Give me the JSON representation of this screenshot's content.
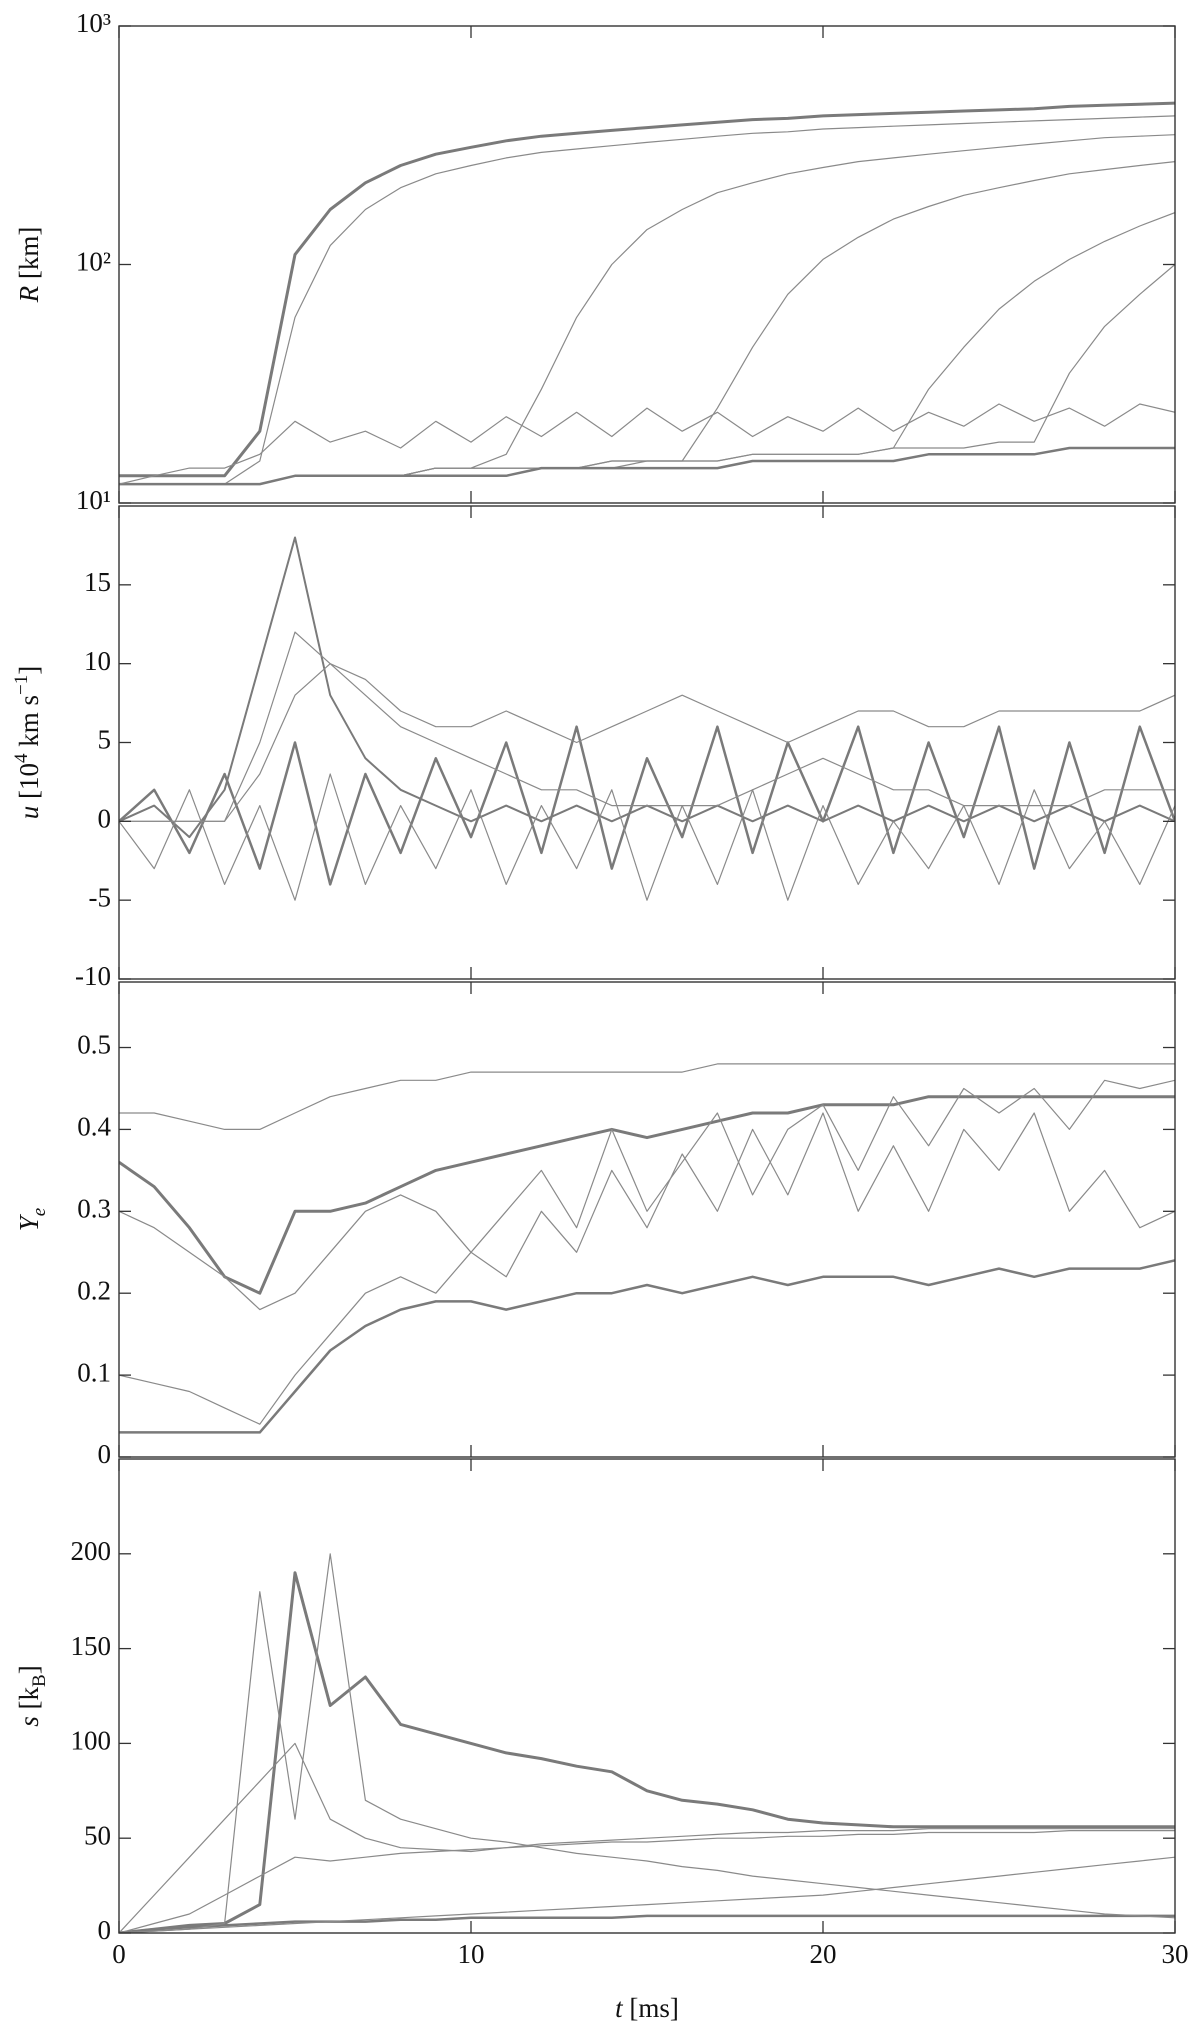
{
  "chart_data": [
    {
      "type": "line",
      "yscale": "log",
      "ylabel": [
        "R",
        "  [km]"
      ],
      "xlim": [
        0,
        30
      ],
      "ylim": [
        10,
        1000
      ],
      "yticks": [
        {
          "value": 10,
          "label": "10¹"
        },
        {
          "value": 100,
          "label": "10²"
        },
        {
          "value": 1000,
          "label": "10³"
        }
      ],
      "x": [
        0,
        1,
        2,
        3,
        4,
        5,
        6,
        7,
        8,
        9,
        10,
        11,
        12,
        13,
        14,
        15,
        16,
        17,
        18,
        19,
        20,
        21,
        22,
        23,
        24,
        25,
        26,
        27,
        28,
        29,
        30
      ],
      "series": [
        {
          "color": "#7a7a7a",
          "linewidth": 3,
          "values": [
            13,
            13,
            13,
            13,
            20,
            110,
            170,
            220,
            260,
            290,
            310,
            330,
            345,
            355,
            365,
            375,
            385,
            395,
            405,
            410,
            420,
            425,
            430,
            435,
            440,
            445,
            450,
            460,
            465,
            470,
            475
          ]
        },
        {
          "color": "#8a8a8a",
          "linewidth": 1.2,
          "values": [
            12,
            12,
            12,
            12,
            15,
            60,
            120,
            170,
            210,
            240,
            260,
            280,
            295,
            305,
            315,
            325,
            335,
            345,
            355,
            360,
            370,
            375,
            380,
            385,
            390,
            395,
            400,
            405,
            410,
            415,
            420
          ]
        },
        {
          "color": "#8a8a8a",
          "linewidth": 1.2,
          "values": [
            12,
            12,
            12,
            12,
            12,
            13,
            13,
            13,
            13,
            14,
            14,
            16,
            30,
            60,
            100,
            140,
            170,
            200,
            220,
            240,
            255,
            270,
            280,
            290,
            300,
            310,
            320,
            330,
            340,
            345,
            350
          ]
        },
        {
          "color": "#8a8a8a",
          "linewidth": 1.2,
          "values": [
            12,
            12,
            12,
            12,
            12,
            13,
            13,
            13,
            13,
            14,
            14,
            14,
            14,
            14,
            14,
            15,
            15,
            25,
            45,
            75,
            105,
            130,
            155,
            175,
            195,
            210,
            225,
            240,
            250,
            260,
            270
          ]
        },
        {
          "color": "#8a8a8a",
          "linewidth": 1.2,
          "values": [
            12,
            12,
            12,
            12,
            12,
            13,
            13,
            13,
            13,
            14,
            14,
            14,
            14,
            14,
            15,
            15,
            15,
            15,
            16,
            16,
            16,
            16,
            17,
            30,
            45,
            65,
            85,
            105,
            125,
            145,
            165
          ]
        },
        {
          "color": "#8a8a8a",
          "linewidth": 1.2,
          "values": [
            12,
            12,
            12,
            12,
            12,
            13,
            13,
            13,
            13,
            14,
            14,
            14,
            14,
            14,
            15,
            15,
            15,
            15,
            16,
            16,
            16,
            16,
            17,
            17,
            17,
            18,
            18,
            35,
            55,
            75,
            100
          ]
        },
        {
          "color": "#7a7a7a",
          "linewidth": 2.5,
          "values": [
            12,
            12,
            12,
            12,
            12,
            13,
            13,
            13,
            13,
            13,
            13,
            13,
            14,
            14,
            14,
            14,
            14,
            14,
            15,
            15,
            15,
            15,
            15,
            16,
            16,
            16,
            16,
            17,
            17,
            17,
            17
          ]
        },
        {
          "color": "#8a8a8a",
          "linewidth": 1.2,
          "values": [
            12,
            13,
            14,
            14,
            16,
            22,
            18,
            20,
            17,
            22,
            18,
            23,
            19,
            24,
            19,
            25,
            20,
            24,
            19,
            23,
            20,
            25,
            20,
            24,
            21,
            26,
            22,
            25,
            21,
            26,
            24
          ]
        }
      ]
    },
    {
      "type": "line",
      "ylabel": [
        "u",
        "  [10",
        "4",
        " km s",
        "−1",
        "]"
      ],
      "xlim": [
        0,
        30
      ],
      "ylim": [
        -10,
        20
      ],
      "yticks": [
        -10,
        -5,
        0,
        5,
        10,
        15
      ],
      "x": [
        0,
        1,
        2,
        3,
        4,
        5,
        6,
        7,
        8,
        9,
        10,
        11,
        12,
        13,
        14,
        15,
        16,
        17,
        18,
        19,
        20,
        21,
        22,
        23,
        24,
        25,
        26,
        27,
        28,
        29,
        30
      ],
      "series": [
        {
          "color": "#7a7a7a",
          "linewidth": 2.5,
          "values": [
            0,
            2,
            -2,
            3,
            -3,
            5,
            -4,
            3,
            -2,
            4,
            -1,
            5,
            -2,
            6,
            -3,
            4,
            -1,
            6,
            -2,
            5,
            0,
            6,
            -2,
            5,
            -1,
            6,
            -3,
            5,
            -2,
            6,
            0
          ]
        },
        {
          "color": "#7a7a7a",
          "linewidth": 2,
          "values": [
            0,
            1,
            -1,
            2,
            10,
            18,
            8,
            4,
            2,
            1,
            0,
            1,
            0,
            1,
            0,
            1,
            0,
            1,
            0,
            1,
            0,
            1,
            0,
            1,
            0,
            1,
            0,
            1,
            0,
            1,
            0
          ]
        },
        {
          "color": "#8a8a8a",
          "linewidth": 1.2,
          "values": [
            0,
            0,
            0,
            0,
            5,
            12,
            10,
            8,
            6,
            5,
            4,
            3,
            2,
            2,
            1,
            1,
            1,
            1,
            2,
            3,
            4,
            3,
            2,
            2,
            1,
            1,
            1,
            1,
            2,
            2,
            2
          ]
        },
        {
          "color": "#8a8a8a",
          "linewidth": 1.2,
          "values": [
            0,
            0,
            0,
            0,
            3,
            8,
            10,
            9,
            7,
            6,
            6,
            7,
            6,
            5,
            6,
            7,
            8,
            7,
            6,
            5,
            6,
            7,
            7,
            6,
            6,
            7,
            7,
            7,
            7,
            7,
            8
          ]
        },
        {
          "color": "#8a8a8a",
          "linewidth": 1.2,
          "values": [
            0,
            -3,
            2,
            -4,
            1,
            -5,
            3,
            -4,
            1,
            -3,
            2,
            -4,
            1,
            -3,
            2,
            -5,
            1,
            -4,
            2,
            -5,
            1,
            -4,
            0,
            -3,
            1,
            -4,
            2,
            -3,
            0,
            -4,
            1
          ]
        }
      ]
    },
    {
      "type": "line",
      "ylabel": [
        "Y",
        "e"
      ],
      "xlim": [
        0,
        30
      ],
      "ylim": [
        0,
        0.58
      ],
      "yticks": [
        0,
        0.1,
        0.2,
        0.3,
        0.4,
        0.5
      ],
      "x": [
        0,
        1,
        2,
        3,
        4,
        5,
        6,
        7,
        8,
        9,
        10,
        11,
        12,
        13,
        14,
        15,
        16,
        17,
        18,
        19,
        20,
        21,
        22,
        23,
        24,
        25,
        26,
        27,
        28,
        29,
        30
      ],
      "series": [
        {
          "color": "#7a7a7a",
          "linewidth": 3,
          "values": [
            0.36,
            0.33,
            0.28,
            0.22,
            0.2,
            0.3,
            0.3,
            0.31,
            0.33,
            0.35,
            0.36,
            0.37,
            0.38,
            0.39,
            0.4,
            0.39,
            0.4,
            0.41,
            0.42,
            0.42,
            0.43,
            0.43,
            0.43,
            0.44,
            0.44,
            0.44,
            0.44,
            0.44,
            0.44,
            0.44,
            0.44
          ]
        },
        {
          "color": "#7a7a7a",
          "linewidth": 2.5,
          "values": [
            0.03,
            0.03,
            0.03,
            0.03,
            0.03,
            0.08,
            0.13,
            0.16,
            0.18,
            0.19,
            0.19,
            0.18,
            0.19,
            0.2,
            0.2,
            0.21,
            0.2,
            0.21,
            0.22,
            0.21,
            0.22,
            0.22,
            0.22,
            0.21,
            0.22,
            0.23,
            0.22,
            0.23,
            0.23,
            0.23,
            0.24
          ]
        },
        {
          "color": "#8a8a8a",
          "linewidth": 1.2,
          "values": [
            0.42,
            0.42,
            0.41,
            0.4,
            0.4,
            0.42,
            0.44,
            0.45,
            0.46,
            0.46,
            0.47,
            0.47,
            0.47,
            0.47,
            0.47,
            0.47,
            0.47,
            0.48,
            0.48,
            0.48,
            0.48,
            0.48,
            0.48,
            0.48,
            0.48,
            0.48,
            0.48,
            0.48,
            0.48,
            0.48,
            0.48
          ]
        },
        {
          "color": "#8a8a8a",
          "linewidth": 1.2,
          "values": [
            0.3,
            0.28,
            0.25,
            0.22,
            0.18,
            0.2,
            0.25,
            0.3,
            0.32,
            0.3,
            0.25,
            0.3,
            0.35,
            0.28,
            0.4,
            0.3,
            0.36,
            0.42,
            0.32,
            0.4,
            0.43,
            0.35,
            0.44,
            0.38,
            0.45,
            0.42,
            0.45,
            0.4,
            0.46,
            0.45,
            0.46
          ]
        },
        {
          "color": "#8a8a8a",
          "linewidth": 1.2,
          "values": [
            0.1,
            0.09,
            0.08,
            0.06,
            0.04,
            0.1,
            0.15,
            0.2,
            0.22,
            0.2,
            0.25,
            0.22,
            0.3,
            0.25,
            0.35,
            0.28,
            0.37,
            0.3,
            0.4,
            0.32,
            0.42,
            0.3,
            0.38,
            0.3,
            0.4,
            0.35,
            0.42,
            0.3,
            0.35,
            0.28,
            0.3
          ]
        }
      ]
    },
    {
      "type": "line",
      "ylabel": [
        "s",
        "  [k",
        "B",
        "]"
      ],
      "xlabel": [
        "t",
        "  [ms]"
      ],
      "xlim": [
        0,
        30
      ],
      "ylim": [
        0,
        250
      ],
      "yticks": [
        0,
        50,
        100,
        150,
        200
      ],
      "xticks": [
        0,
        10,
        20,
        30
      ],
      "x": [
        0,
        1,
        2,
        3,
        4,
        5,
        6,
        7,
        8,
        9,
        10,
        11,
        12,
        13,
        14,
        15,
        16,
        17,
        18,
        19,
        20,
        21,
        22,
        23,
        24,
        25,
        26,
        27,
        28,
        29,
        30
      ],
      "series": [
        {
          "color": "#7a7a7a",
          "linewidth": 3,
          "values": [
            0,
            2,
            4,
            5,
            15,
            190,
            120,
            135,
            110,
            105,
            100,
            95,
            92,
            88,
            85,
            75,
            70,
            68,
            65,
            60,
            58,
            57,
            56,
            56,
            56,
            56,
            56,
            56,
            56,
            56,
            56
          ]
        },
        {
          "color": "#7a7a7a",
          "linewidth": 2.5,
          "values": [
            0,
            2,
            3,
            4,
            5,
            6,
            6,
            6,
            7,
            7,
            8,
            8,
            8,
            8,
            8,
            9,
            9,
            9,
            9,
            9,
            9,
            9,
            9,
            9,
            9,
            9,
            9,
            9,
            9,
            9,
            9
          ]
        },
        {
          "color": "#8a8a8a",
          "linewidth": 1.2,
          "values": [
            0,
            20,
            40,
            60,
            80,
            100,
            60,
            50,
            45,
            44,
            43,
            45,
            47,
            48,
            49,
            50,
            51,
            52,
            53,
            53,
            54,
            54,
            54,
            55,
            55,
            55,
            55,
            55,
            55,
            55,
            55
          ]
        },
        {
          "color": "#8a8a8a",
          "linewidth": 1.2,
          "values": [
            0,
            5,
            10,
            20,
            30,
            40,
            38,
            40,
            42,
            43,
            44,
            45,
            46,
            47,
            48,
            48,
            49,
            50,
            50,
            51,
            51,
            52,
            52,
            53,
            53,
            53,
            53,
            54,
            54,
            54,
            54
          ]
        },
        {
          "color": "#8a8a8a",
          "linewidth": 1.2,
          "values": [
            0,
            1,
            2,
            3,
            4,
            5,
            6,
            7,
            8,
            9,
            10,
            11,
            12,
            13,
            14,
            15,
            16,
            17,
            18,
            19,
            20,
            22,
            24,
            26,
            28,
            30,
            32,
            34,
            36,
            38,
            40
          ]
        },
        {
          "color": "#8a8a8a",
          "linewidth": 1.2,
          "values": [
            0,
            1,
            2,
            5,
            180,
            60,
            200,
            70,
            60,
            55,
            50,
            48,
            45,
            42,
            40,
            38,
            35,
            33,
            30,
            28,
            26,
            24,
            22,
            20,
            18,
            16,
            14,
            12,
            10,
            9,
            8
          ]
        }
      ]
    }
  ]
}
